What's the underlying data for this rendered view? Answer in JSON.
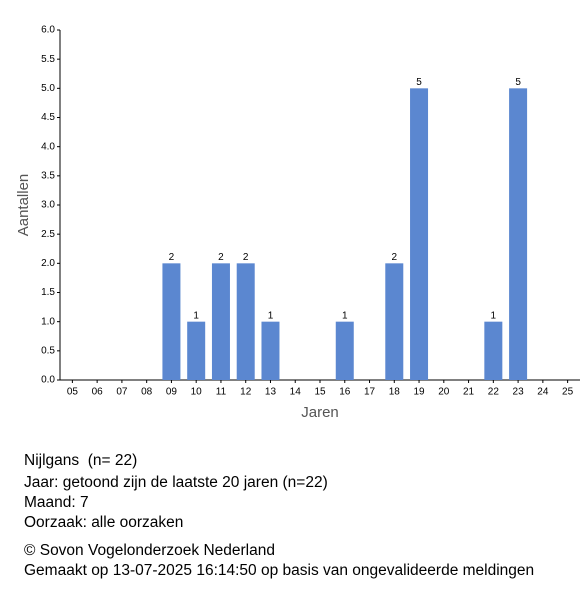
{
  "chart_data": {
    "type": "bar",
    "x_label": "Jaren",
    "y_label": "Aantallen",
    "categories": [
      "05",
      "06",
      "07",
      "08",
      "09",
      "10",
      "11",
      "12",
      "13",
      "14",
      "15",
      "16",
      "17",
      "18",
      "19",
      "20",
      "21",
      "22",
      "23",
      "24",
      "25"
    ],
    "values": [
      0,
      0,
      0,
      0,
      2,
      1,
      2,
      2,
      1,
      0,
      0,
      1,
      0,
      2,
      5,
      0,
      0,
      1,
      5,
      0,
      0
    ],
    "color": "#5b87d0",
    "ylim": [
      0,
      6
    ],
    "yticks": [
      {
        "value": 0,
        "label": "0.0"
      },
      {
        "value": 0.5,
        "label": "0.5"
      },
      {
        "value": 1,
        "label": "1.0"
      },
      {
        "value": 1.5,
        "label": "1.5"
      },
      {
        "value": 2,
        "label": "2.0"
      },
      {
        "value": 2.5,
        "label": "2.5"
      },
      {
        "value": 3,
        "label": "3.0"
      },
      {
        "value": 3.5,
        "label": "3.5"
      },
      {
        "value": 4,
        "label": "4.0"
      },
      {
        "value": 4.5,
        "label": "4.5"
      },
      {
        "value": 5,
        "label": "5.0"
      },
      {
        "value": 5.5,
        "label": "5.5"
      },
      {
        "value": 6,
        "label": "6.0"
      }
    ],
    "grid": false
  },
  "info": [
    "Nijlgans  (n= 22)",
    "Jaar: getoond zijn de laatste 20 jaren (n=22)",
    "Maand: 7",
    "Oorzaak: alle oorzaken",
    "© Sovon Vogelonderzoek Nederland",
    "Gemaakt op 13-07-2025 16:14:50 op basis van ongevalideerde meldingen"
  ]
}
